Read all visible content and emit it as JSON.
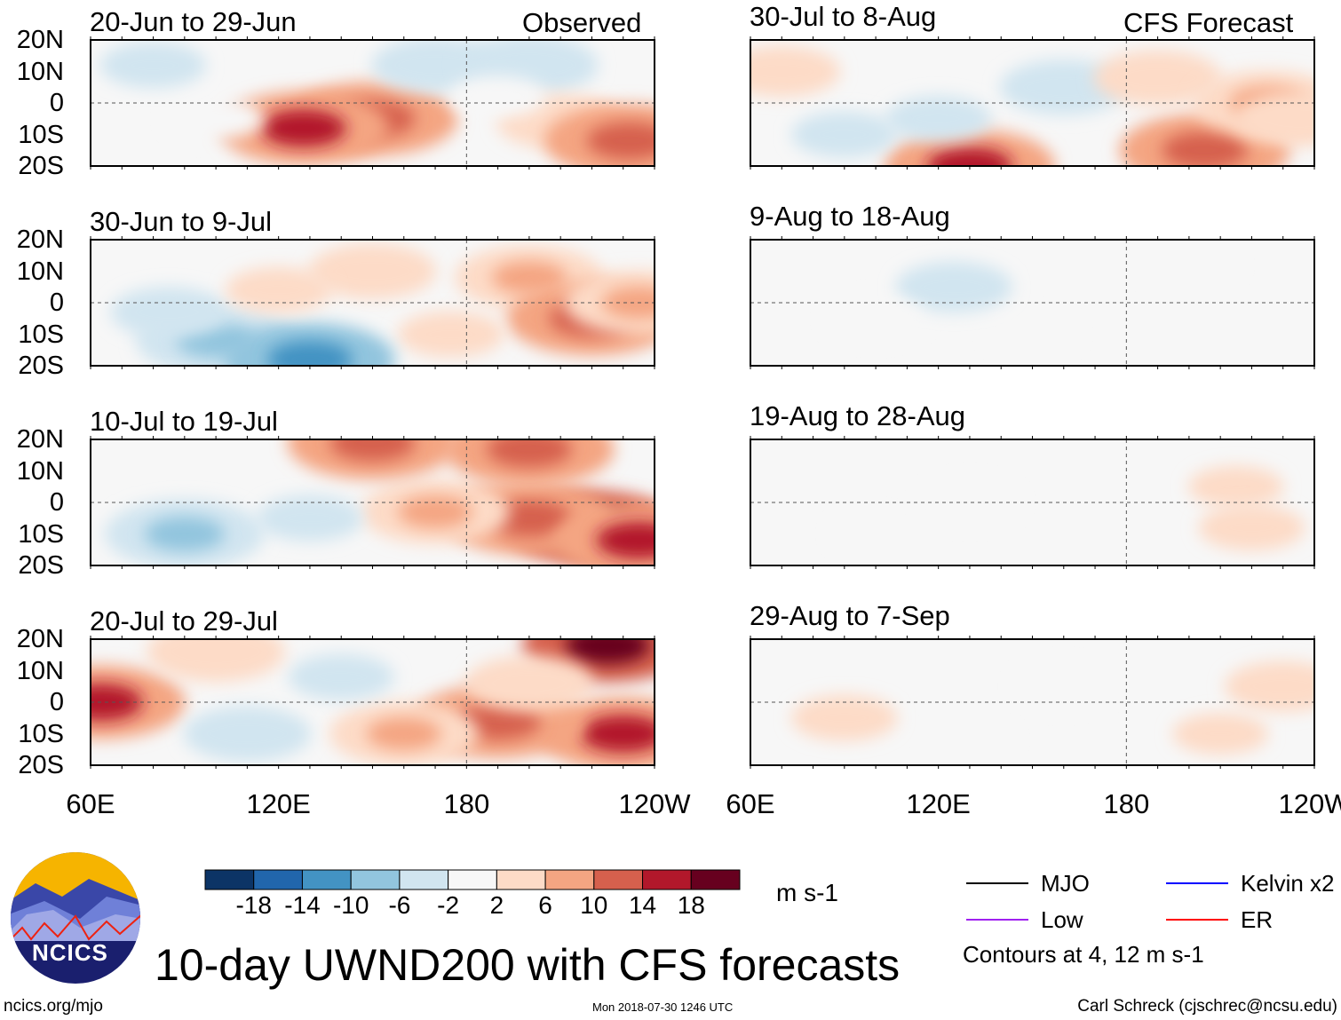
{
  "chart_data": {
    "type": "heatmap",
    "title": "10-day UWND200 with CFS forecasts",
    "units": "m s-1",
    "lon_range": [
      60,
      240
    ],
    "lat_range": [
      -20,
      20
    ],
    "lon_ticks": [
      "60E",
      "120E",
      "180",
      "120W"
    ],
    "lat_ticks": [
      "20N",
      "10N",
      "0",
      "10S",
      "20S"
    ],
    "colorbar": {
      "levels": [
        "-18",
        "-14",
        "-10",
        "-6",
        "-2",
        "2",
        "6",
        "10",
        "14",
        "18"
      ],
      "colors": [
        "#0c3466",
        "#2166ac",
        "#4393c3",
        "#92c5de",
        "#d1e5f0",
        "#f7f7f7",
        "#fddbc7",
        "#f4a582",
        "#d6604d",
        "#b2182b",
        "#67001f"
      ]
    },
    "legend": [
      {
        "label": "MJO",
        "color": "#000000"
      },
      {
        "label": "Kelvin x2",
        "color": "#0000ff"
      },
      {
        "label": "Low",
        "color": "#a020f0"
      },
      {
        "label": "ER",
        "color": "#ff0000"
      }
    ],
    "contour_note": "Contours at 4, 12 m s-1",
    "column_labels": {
      "left": "Observed",
      "right": "CFS Forecast"
    },
    "panels": [
      {
        "title": "20-Jun to 29-Jun",
        "blobs": [
          [
            80,
            12,
            -4
          ],
          [
            150,
            -5,
            12
          ],
          [
            128,
            -8,
            14
          ],
          [
            170,
            12,
            -6
          ],
          [
            200,
            12,
            -7
          ],
          [
            210,
            -6,
            6
          ],
          [
            232,
            -12,
            10
          ],
          [
            100,
            -5,
            -3
          ],
          [
            190,
            2,
            -3
          ]
        ]
      },
      {
        "title": "30-Jun to 9-Jul",
        "blobs": [
          [
            100,
            -12,
            -9
          ],
          [
            85,
            -3,
            -5
          ],
          [
            150,
            10,
            6
          ],
          [
            200,
            8,
            8
          ],
          [
            220,
            -5,
            10
          ],
          [
            235,
            0,
            8
          ],
          [
            175,
            -10,
            4
          ],
          [
            130,
            -18,
            -12
          ],
          [
            120,
            4,
            4
          ]
        ]
      },
      {
        "title": "10-Jul to 19-Jul",
        "blobs": [
          [
            220,
            -8,
            20
          ],
          [
            200,
            -5,
            12
          ],
          [
            170,
            -3,
            8
          ],
          [
            90,
            -10,
            -9
          ],
          [
            150,
            19,
            12
          ],
          [
            200,
            17,
            10
          ],
          [
            130,
            -5,
            -4
          ],
          [
            235,
            -12,
            14
          ]
        ]
      },
      {
        "title": "20-Jul to 29-Jul",
        "blobs": [
          [
            63,
            0,
            14
          ],
          [
            225,
            18,
            20
          ],
          [
            230,
            -10,
            16
          ],
          [
            190,
            -6,
            10
          ],
          [
            160,
            -10,
            8
          ],
          [
            110,
            -10,
            -6
          ],
          [
            140,
            8,
            -4
          ],
          [
            200,
            6,
            6
          ],
          [
            100,
            16,
            7
          ]
        ]
      },
      {
        "title": "30-Jul to 8-Aug",
        "blobs": [
          [
            70,
            10,
            5
          ],
          [
            130,
            -20,
            16
          ],
          [
            205,
            -15,
            12
          ],
          [
            160,
            5,
            -6
          ],
          [
            120,
            -5,
            -4
          ],
          [
            190,
            8,
            6
          ],
          [
            225,
            0,
            8
          ],
          [
            90,
            -10,
            -4
          ],
          [
            235,
            -5,
            6
          ]
        ]
      },
      {
        "title": "9-Aug to 18-Aug",
        "blobs": [
          [
            125,
            5,
            -5
          ],
          [
            100,
            -5,
            -3
          ],
          [
            200,
            12,
            -3
          ],
          [
            150,
            -10,
            -2
          ]
        ]
      },
      {
        "title": "19-Aug to 28-Aug",
        "blobs": [
          [
            130,
            0,
            -3
          ],
          [
            215,
            5,
            3
          ],
          [
            220,
            -8,
            4
          ],
          [
            100,
            -10,
            -2
          ]
        ]
      },
      {
        "title": "29-Aug to 7-Sep",
        "blobs": [
          [
            90,
            -5,
            4
          ],
          [
            160,
            5,
            -3
          ],
          [
            230,
            5,
            5
          ],
          [
            210,
            -10,
            3
          ],
          [
            130,
            -12,
            -2
          ]
        ]
      }
    ]
  },
  "footer": {
    "logo_text": "NCICS",
    "url": "ncics.org/mjo",
    "timestamp": "Mon 2018-07-30 1246 UTC",
    "author": "Carl Schreck (cjschrec@ncsu.edu)"
  }
}
